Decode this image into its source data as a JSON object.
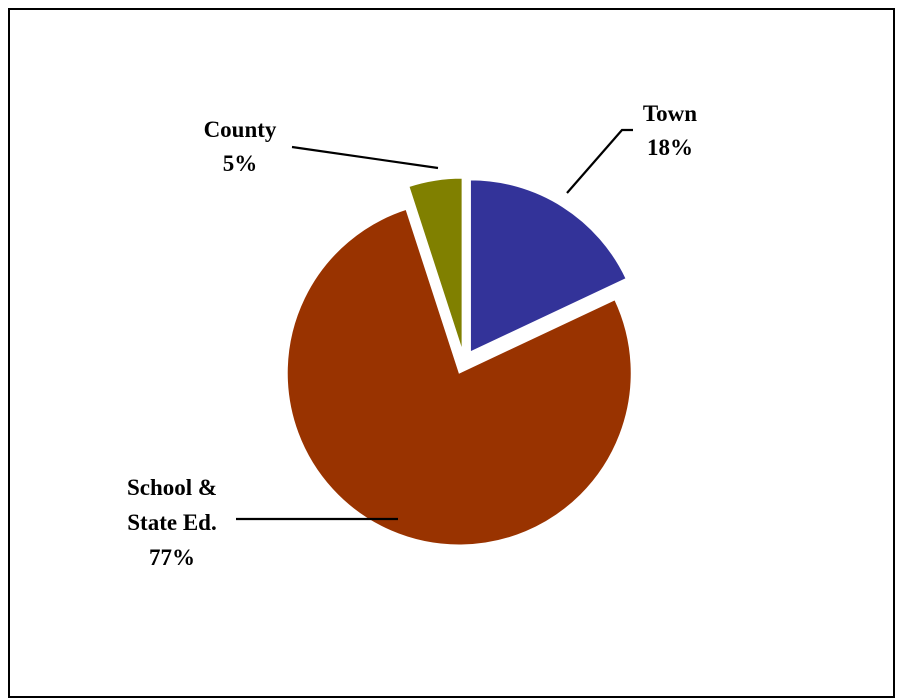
{
  "chart_data": {
    "type": "pie",
    "title": "",
    "exploded": true,
    "slices": [
      {
        "name": "Town",
        "value": 18,
        "label": "18%",
        "color": "#333399"
      },
      {
        "name": "School & State Ed.",
        "value": 77,
        "label": "77%",
        "color": "#993300"
      },
      {
        "name": "County",
        "value": 5,
        "label": "5%",
        "color": "#808000"
      }
    ]
  },
  "labels": {
    "town_name": "Town",
    "town_pct": "18%",
    "school_name_line1": "School &",
    "school_name_line2": "State Ed.",
    "school_pct": "77%",
    "county_name": "County",
    "county_pct": "5%"
  }
}
